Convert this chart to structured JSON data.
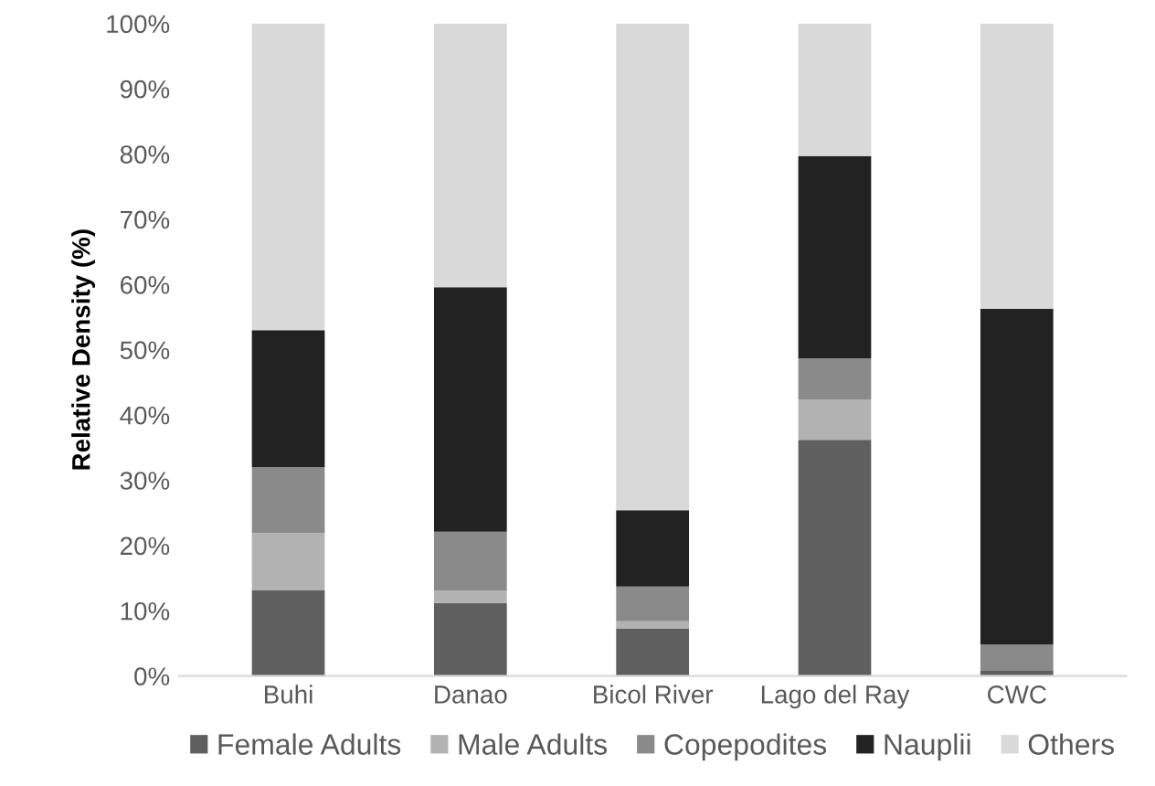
{
  "chart_data": {
    "type": "bar",
    "stacked": true,
    "ylabel": "Relative Density (%)",
    "categories": [
      "Buhi",
      "Danao",
      "Bicol River",
      "Lago del Ray",
      "CWC"
    ],
    "series": [
      {
        "name": "Female Adults",
        "color": "#5f5f5f",
        "values": [
          13.2,
          11.2,
          7.3,
          36.2,
          0.9
        ]
      },
      {
        "name": "Male Adults",
        "color": "#b2b2b2",
        "values": [
          8.7,
          1.9,
          1.1,
          6.2,
          null
        ]
      },
      {
        "name": "Copepodites",
        "color": "#8a8a8a",
        "values": [
          10.1,
          9.0,
          5.3,
          6.3,
          3.9
        ]
      },
      {
        "name": "Nauplii",
        "color": "#222222",
        "values": [
          21.0,
          37.5,
          11.7,
          31.0,
          51.5
        ]
      },
      {
        "name": "Others",
        "color": "#d9d9d9",
        "values": [
          47.0,
          40.4,
          74.6,
          20.3,
          43.7
        ]
      }
    ],
    "ylim": [
      0,
      100
    ],
    "yticks": [
      {
        "value": 0,
        "label": "0%"
      },
      {
        "value": 10,
        "label": "10%"
      },
      {
        "value": 20,
        "label": "20%"
      },
      {
        "value": 30,
        "label": "30%"
      },
      {
        "value": 40,
        "label": "40%"
      },
      {
        "value": 50,
        "label": "50%"
      },
      {
        "value": 60,
        "label": "60%"
      },
      {
        "value": 70,
        "label": "70%"
      },
      {
        "value": 80,
        "label": "80%"
      },
      {
        "value": 90,
        "label": "90%"
      },
      {
        "value": 100,
        "label": "100%"
      }
    ],
    "grid": false,
    "legend": "bottom"
  }
}
